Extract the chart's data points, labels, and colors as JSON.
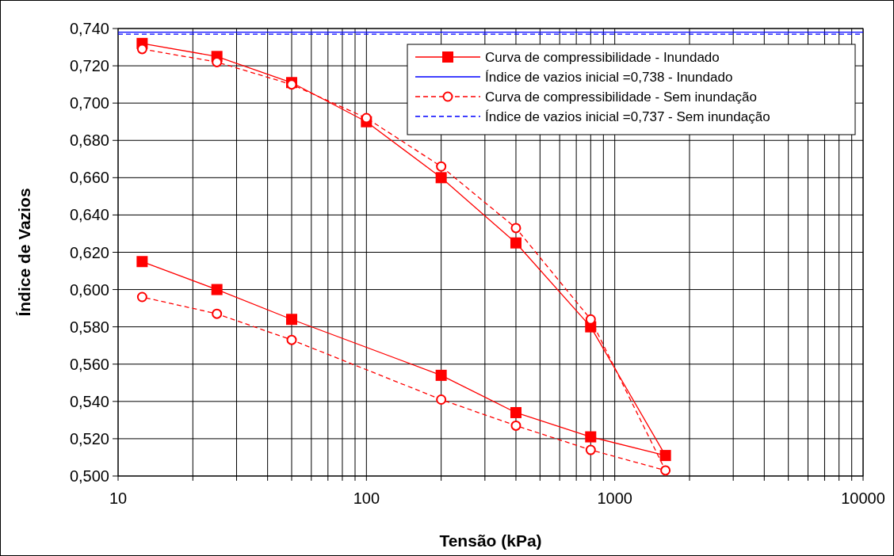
{
  "chart_data": {
    "type": "line",
    "xlabel": "Tensão (kPa)",
    "ylabel": "Índice de Vazios",
    "log": "x",
    "grid": true,
    "legend": "top right",
    "xlim": [
      10,
      10000
    ],
    "ylim": [
      0.5,
      0.74
    ],
    "xticks": [
      10,
      {
        "value": 20,
        "label": null
      },
      {
        "value": 30,
        "label": null
      },
      {
        "value": 40,
        "label": null
      },
      {
        "value": 50,
        "label": null
      },
      {
        "value": 60,
        "label": null
      },
      {
        "value": 70,
        "label": null
      },
      {
        "value": 80,
        "label": null
      },
      {
        "value": 90,
        "label": null
      },
      100,
      {
        "value": 200,
        "label": null
      },
      {
        "value": 300,
        "label": null
      },
      {
        "value": 400,
        "label": null
      },
      {
        "value": 500,
        "label": null
      },
      {
        "value": 600,
        "label": null
      },
      {
        "value": 700,
        "label": null
      },
      {
        "value": 800,
        "label": null
      },
      {
        "value": 900,
        "label": null
      },
      1000,
      {
        "value": 2000,
        "label": null
      },
      {
        "value": 3000,
        "label": null
      },
      {
        "value": 4000,
        "label": null
      },
      {
        "value": 5000,
        "label": null
      },
      {
        "value": 6000,
        "label": null
      },
      {
        "value": 7000,
        "label": null
      },
      {
        "value": 8000,
        "label": null
      },
      {
        "value": 9000,
        "label": null
      },
      10000
    ],
    "yticks": [
      {
        "value": 0.5,
        "label": "0,500"
      },
      {
        "value": 0.52,
        "label": "0,520"
      },
      {
        "value": 0.54,
        "label": "0,540"
      },
      {
        "value": 0.56,
        "label": "0,560"
      },
      {
        "value": 0.58,
        "label": "0,580"
      },
      {
        "value": 0.6,
        "label": "0,600"
      },
      {
        "value": 0.62,
        "label": "0,620"
      },
      {
        "value": 0.64,
        "label": "0,640"
      },
      {
        "value": 0.66,
        "label": "0,660"
      },
      {
        "value": 0.68,
        "label": "0,680"
      },
      {
        "value": 0.7,
        "label": "0,700"
      },
      {
        "value": 0.72,
        "label": "0,720"
      },
      {
        "value": 0.74,
        "label": "0,740"
      }
    ],
    "series": [
      {
        "name": "Curva de compressibilidade - Inundado",
        "color": "#ff0000",
        "marker": "square",
        "line_style": "solid",
        "x": [
          12.5,
          25,
          50,
          100,
          200,
          400,
          800,
          1600,
          800,
          400,
          200,
          50,
          25,
          12.5
        ],
        "values": [
          0.732,
          0.725,
          0.711,
          0.69,
          0.66,
          0.625,
          0.58,
          0.511,
          0.521,
          0.534,
          0.554,
          0.584,
          0.6,
          0.615
        ]
      },
      {
        "name": "Índice de vazios inicial =0,738 - Inundado",
        "color": "#0000ff",
        "marker": "none",
        "line_style": "solid",
        "x": [
          10,
          10000
        ],
        "values": [
          0.738,
          0.738
        ]
      },
      {
        "name": "Curva de compressibilidade - Sem inundação",
        "color": "#ff0000",
        "marker": "circle",
        "line_style": "dashed",
        "x": [
          12.5,
          25,
          50,
          100,
          200,
          400,
          800,
          1600,
          800,
          400,
          200,
          50,
          25,
          12.5
        ],
        "values": [
          0.729,
          0.722,
          0.71,
          0.692,
          0.666,
          0.633,
          0.584,
          0.503,
          0.514,
          0.527,
          0.541,
          0.573,
          0.587,
          0.596
        ]
      },
      {
        "name": "Índice de vazios inicial =0,737 - Sem inundação",
        "color": "#0000ff",
        "marker": "none",
        "line_style": "dashed",
        "x": [
          10,
          10000
        ],
        "values": [
          0.737,
          0.737
        ]
      }
    ]
  }
}
